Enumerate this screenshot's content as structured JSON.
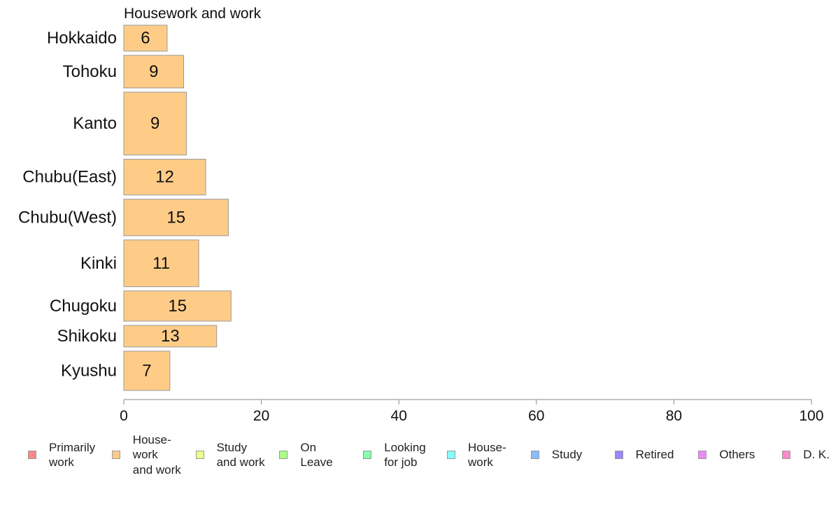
{
  "chart_data": {
    "type": "bar",
    "orientation": "horizontal",
    "title": "Housework and work",
    "categories": [
      "Hokkaido",
      "Tohoku",
      "Kanto",
      "Chubu(East)",
      "Chubu(West)",
      "Kinki",
      "Chugoku",
      "Shikoku",
      "Kyushu"
    ],
    "values": [
      6,
      9,
      9,
      12,
      15,
      11,
      15,
      13,
      7
    ],
    "bar_lengths": [
      6.3,
      8.7,
      9.1,
      11.9,
      15.2,
      10.9,
      15.6,
      13.5,
      6.7
    ],
    "relative_bar_thickness": [
      0.66,
      0.83,
      1.6,
      0.91,
      0.93,
      1.19,
      0.77,
      0.55,
      1.0
    ],
    "xlim": [
      0,
      100
    ],
    "xticks": [
      0,
      20,
      40,
      60,
      80,
      100
    ],
    "xtick_labels": [
      "0",
      "20",
      "40",
      "60",
      "80",
      "100"
    ],
    "bar_color": "#FFCC88",
    "bar_border_color": "#999999",
    "grid": false,
    "legend_position": "bottom",
    "legend": [
      {
        "label": "Primarily\nwork",
        "color": "#FF8888"
      },
      {
        "label": "House-\nwork\nand work",
        "color": "#FFCC88"
      },
      {
        "label": "Study\nand work",
        "color": "#EEFF88"
      },
      {
        "label": "On\nLeave",
        "color": "#AAFF88"
      },
      {
        "label": "Looking\nfor job",
        "color": "#88FFAA"
      },
      {
        "label": "House-\nwork",
        "color": "#88FFFF"
      },
      {
        "label": "Study",
        "color": "#88BBFF"
      },
      {
        "label": "Retired",
        "color": "#9988FF"
      },
      {
        "label": "Others",
        "color": "#EE88FF"
      },
      {
        "label": "D. K.",
        "color": "#FF88CC"
      }
    ]
  }
}
